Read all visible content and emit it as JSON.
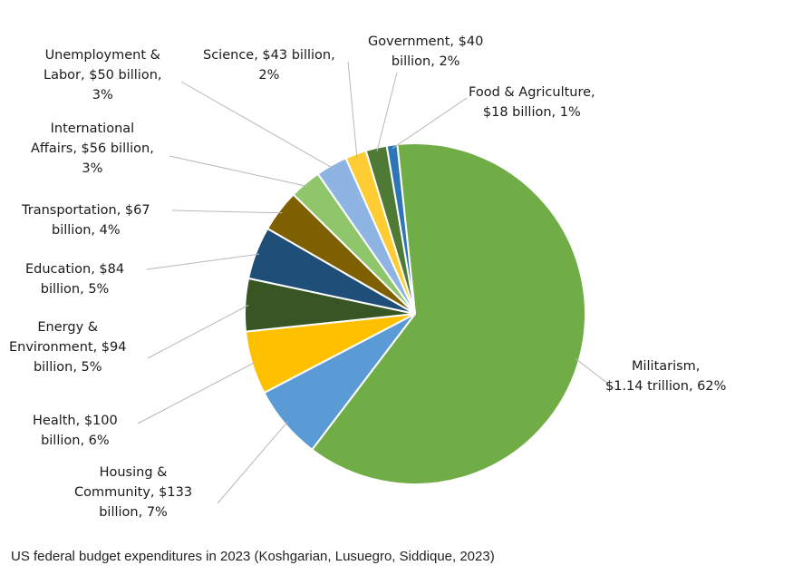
{
  "chart_data": {
    "type": "pie",
    "title": "",
    "slices": [
      {
        "category": "Militarism",
        "value_text": "$1.14 trillion",
        "percent": 62,
        "value": 1140,
        "color": "#70ad47",
        "label_lines": [
          "Militarism,",
          "$1.14 trillion, 62%"
        ]
      },
      {
        "category": "Housing & Community",
        "value_text": "$133 billion",
        "percent": 7,
        "value": 133,
        "color": "#5b9bd5",
        "label_lines": [
          "Housing &",
          "Community, $133",
          "billion, 7%"
        ]
      },
      {
        "category": "Health",
        "value_text": "$100 billion",
        "percent": 6,
        "value": 100,
        "color": "#ffc000",
        "label_lines": [
          "Health, $100",
          "billion, 6%"
        ]
      },
      {
        "category": "Energy & Environment",
        "value_text": "$94 billion",
        "percent": 5,
        "value": 94,
        "color": "#375623",
        "label_lines": [
          "Energy &",
          "Environment, $94",
          "billion, 5%"
        ]
      },
      {
        "category": "Education",
        "value_text": "$84 billion",
        "percent": 5,
        "value": 84,
        "color": "#1f4e79",
        "label_lines": [
          "Education, $84",
          "billion, 5%"
        ]
      },
      {
        "category": "Transportation",
        "value_text": "$67 billion",
        "percent": 4,
        "value": 67,
        "color": "#7f6000",
        "label_lines": [
          "Transportation, $67",
          "billion, 4%"
        ]
      },
      {
        "category": "International Affairs",
        "value_text": "$56 billion",
        "percent": 3,
        "value": 56,
        "color": "#8fc66c",
        "label_lines": [
          "International",
          "Affairs, $56 billion,",
          "3%"
        ]
      },
      {
        "category": "Unemployment & Labor",
        "value_text": "$50 billion",
        "percent": 3,
        "value": 50,
        "color": "#8db4e2",
        "label_lines": [
          "Unemployment &",
          "Labor, $50 billion,",
          "3%"
        ]
      },
      {
        "category": "Science",
        "value_text": "$43 billion",
        "percent": 2,
        "value": 43,
        "color": "#ffcc33",
        "label_lines": [
          "Science, $43 billion,",
          "2%"
        ]
      },
      {
        "category": "Government",
        "value_text": "$40 billion",
        "percent": 2,
        "value": 40,
        "color": "#4e7a35",
        "label_lines": [
          "Government, $40",
          "billion, 2%"
        ]
      },
      {
        "category": "Food & Agriculture",
        "value_text": "$18 billion",
        "percent": 1,
        "value": 18,
        "color": "#2e75b6",
        "label_lines": [
          "Food & Agriculture,",
          "$18 billion, 1%"
        ]
      }
    ],
    "legend": "none",
    "caption": "US federal budget expenditures in 2023 (Koshgarian, Lusuegro, Siddique, 2023)"
  }
}
